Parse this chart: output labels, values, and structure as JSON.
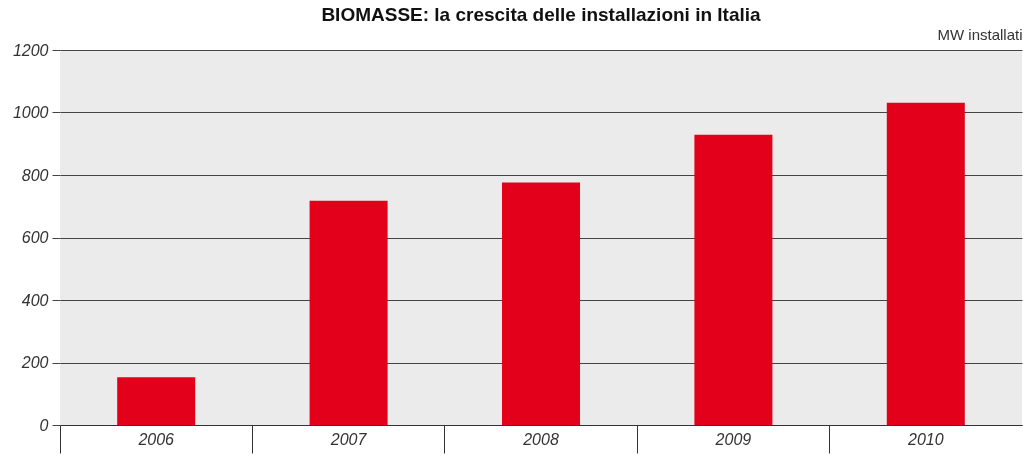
{
  "chart_data": {
    "type": "bar",
    "title": "BIOMASSE: la crescita delle installazioni in Italia",
    "ylabel": "MW installati",
    "categories": [
      "2006",
      "2007",
      "2008",
      "2009",
      "2010"
    ],
    "values": [
      153,
      718,
      776,
      929,
      1031
    ],
    "color": "#e2001a",
    "ylim": [
      0,
      1200
    ],
    "yticks": [
      0,
      200,
      400,
      600,
      800,
      1000,
      1200
    ],
    "grid": "y"
  }
}
